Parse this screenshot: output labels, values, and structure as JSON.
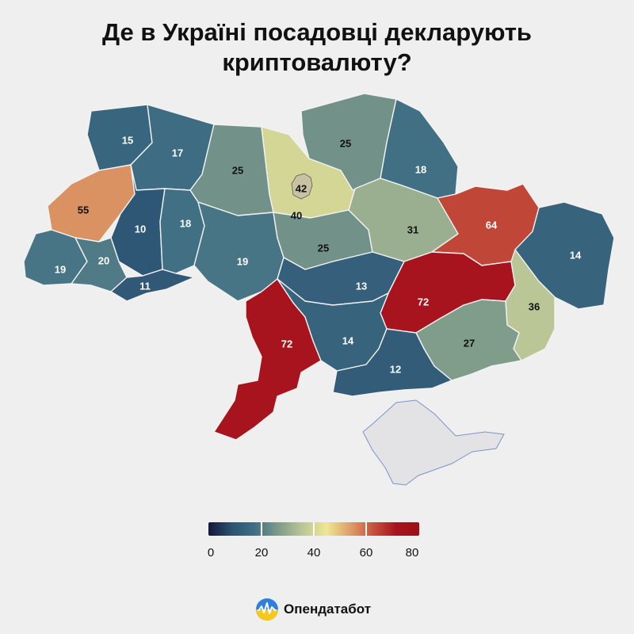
{
  "title": {
    "line1": "Де в Україні посадовці декларують",
    "line2": "криптовалюту?"
  },
  "regions": [
    {
      "id": "volyn",
      "value": 15
    },
    {
      "id": "rivne",
      "value": 17
    },
    {
      "id": "zhytomyr",
      "value": 25
    },
    {
      "id": "kyiv",
      "value": 40
    },
    {
      "id": "kyiv-city",
      "value": 42
    },
    {
      "id": "chernihiv",
      "value": 25
    },
    {
      "id": "sumy",
      "value": 18
    },
    {
      "id": "lviv",
      "value": 55
    },
    {
      "id": "ternopil",
      "value": 10
    },
    {
      "id": "khmelnytskyi",
      "value": 18
    },
    {
      "id": "vinnytsia",
      "value": 19
    },
    {
      "id": "cherkasy",
      "value": 25
    },
    {
      "id": "poltava",
      "value": 31
    },
    {
      "id": "kharkiv",
      "value": 64
    },
    {
      "id": "luhansk",
      "value": 14
    },
    {
      "id": "zakarpattia",
      "value": 19
    },
    {
      "id": "ivano-frankivsk",
      "value": 20
    },
    {
      "id": "chernivtsi",
      "value": 11
    },
    {
      "id": "kirovohrad",
      "value": 13
    },
    {
      "id": "dnipropetrovsk",
      "value": 72
    },
    {
      "id": "donetsk",
      "value": 36
    },
    {
      "id": "odesa",
      "value": 72
    },
    {
      "id": "mykolaiv",
      "value": 14
    },
    {
      "id": "zaporizhzhia",
      "value": 27
    },
    {
      "id": "kherson",
      "value": 12
    }
  ],
  "legend": {
    "ticks": [
      "0",
      "20",
      "40",
      "60",
      "80"
    ],
    "min": 0,
    "max": 80,
    "colors": [
      "#15163b",
      "#2c5273",
      "#3f6f84",
      "#7e9a8a",
      "#b8c497",
      "#eee793",
      "#dfa06b",
      "#c6533e",
      "#a8141d",
      "#9e0f18"
    ]
  },
  "brand": {
    "name": "Опендатабот",
    "logo": "opendatabot-logo"
  }
}
